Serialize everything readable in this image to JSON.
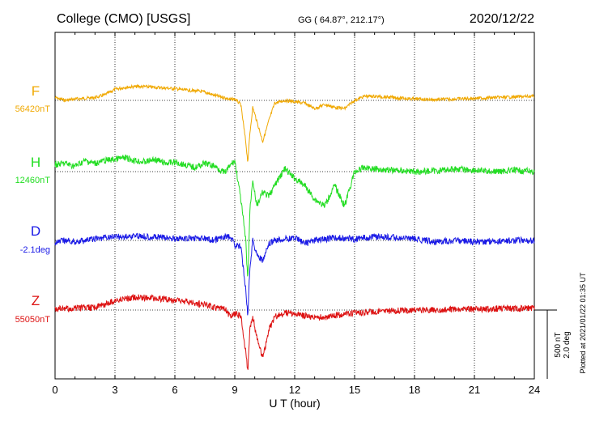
{
  "header": {
    "station": "College (CMO)  [USGS]",
    "coords": "GG ( 64.87°, 212.17°)",
    "date": "2020/12/22"
  },
  "footer": {
    "plotted": "Plotted at 2021/01/22 01:35 UT"
  },
  "chart_data": {
    "type": "line",
    "xlabel": "U T (hour)",
    "xlim": [
      0,
      24
    ],
    "xticks": [
      0,
      3,
      6,
      9,
      12,
      15,
      18,
      21,
      24
    ],
    "grid": true,
    "scale_bar": {
      "label_top": "500 nT",
      "label_bottom": "2.0 deg"
    },
    "series": [
      {
        "name": "F",
        "baseline_label": "56420nT",
        "color": "#f0a800",
        "x": [
          0,
          0.5,
          1,
          1.5,
          2,
          2.5,
          3,
          3.5,
          4,
          4.5,
          5,
          5.5,
          6,
          6.5,
          7,
          7.5,
          8,
          8.5,
          8.8,
          9,
          9.3,
          9.55,
          9.65,
          9.75,
          9.9,
          10.1,
          10.4,
          10.7,
          11,
          11.5,
          12,
          12.5,
          13,
          13.5,
          14,
          14.5,
          15,
          15.5,
          16,
          17,
          18,
          19,
          20,
          21,
          22,
          23,
          24
        ],
        "y": [
          20,
          0,
          10,
          15,
          20,
          40,
          80,
          95,
          100,
          100,
          95,
          90,
          85,
          75,
          70,
          60,
          35,
          20,
          5,
          10,
          -30,
          -300,
          -450,
          -250,
          -50,
          -150,
          -300,
          -150,
          -20,
          0,
          -10,
          -20,
          -60,
          -30,
          -50,
          -60,
          0,
          30,
          30,
          20,
          10,
          5,
          10,
          15,
          20,
          25,
          30
        ]
      },
      {
        "name": "H",
        "baseline_label": "12460nT",
        "color": "#22dd22",
        "x": [
          0,
          0.5,
          1,
          1.5,
          2,
          2.5,
          3,
          3.5,
          4,
          4.5,
          5,
          5.5,
          6,
          6.5,
          7,
          7.5,
          8,
          8.5,
          8.8,
          9,
          9.3,
          9.55,
          9.65,
          9.75,
          9.9,
          10.1,
          10.4,
          10.7,
          11,
          11.5,
          12,
          12.5,
          13,
          13.5,
          14,
          14.5,
          15,
          15.5,
          16,
          17,
          18,
          19,
          20,
          21,
          22,
          23,
          24
        ],
        "y": [
          50,
          60,
          40,
          80,
          60,
          80,
          90,
          100,
          80,
          70,
          90,
          60,
          70,
          50,
          30,
          60,
          40,
          -10,
          50,
          80,
          -200,
          -500,
          -800,
          -300,
          -50,
          -250,
          -150,
          -180,
          -100,
          20,
          -50,
          -100,
          -200,
          -250,
          -100,
          -250,
          0,
          30,
          20,
          10,
          0,
          5,
          20,
          10,
          0,
          10,
          0
        ]
      },
      {
        "name": "D",
        "baseline_label": "-2.1deg",
        "color": "#1a1ae6",
        "x": [
          0,
          0.5,
          1,
          1.5,
          2,
          2.5,
          3,
          3.5,
          4,
          4.5,
          5,
          5.5,
          6,
          6.5,
          7,
          7.5,
          8,
          8.5,
          8.8,
          9,
          9.3,
          9.55,
          9.65,
          9.75,
          9.9,
          10.1,
          10.4,
          10.7,
          11,
          11.5,
          12,
          12.5,
          13,
          13.5,
          14,
          14.5,
          15,
          15.5,
          16,
          17,
          18,
          19,
          20,
          21,
          22,
          23,
          24
        ],
        "y": [
          -20,
          0,
          -10,
          0,
          10,
          20,
          30,
          25,
          35,
          30,
          25,
          20,
          15,
          10,
          20,
          10,
          0,
          30,
          20,
          -30,
          -50,
          -350,
          -550,
          -200,
          0,
          -100,
          -150,
          -30,
          0,
          10,
          20,
          -20,
          0,
          10,
          20,
          15,
          10,
          20,
          30,
          20,
          10,
          -10,
          0,
          -10,
          -5,
          0,
          0
        ]
      },
      {
        "name": "Z",
        "baseline_label": "55050nT",
        "color": "#dd1111",
        "x": [
          0,
          0.5,
          1,
          1.5,
          2,
          2.5,
          3,
          3.5,
          4,
          4.5,
          5,
          5.5,
          6,
          6.5,
          7,
          7.5,
          8,
          8.5,
          8.8,
          9,
          9.3,
          9.55,
          9.65,
          9.75,
          9.9,
          10.1,
          10.4,
          10.7,
          11,
          11.5,
          12,
          12.5,
          13,
          13.5,
          14,
          14.5,
          15,
          15.5,
          16,
          17,
          18,
          19,
          20,
          21,
          22,
          23,
          24
        ],
        "y": [
          5,
          10,
          10,
          15,
          20,
          40,
          70,
          80,
          90,
          90,
          85,
          80,
          70,
          60,
          50,
          40,
          20,
          10,
          -50,
          -30,
          -40,
          -300,
          -450,
          -150,
          -50,
          -200,
          -350,
          -150,
          -50,
          -20,
          -30,
          -40,
          -60,
          -50,
          -40,
          -30,
          -20,
          -20,
          -10,
          -5,
          0,
          0,
          5,
          5,
          10,
          10,
          15
        ]
      }
    ]
  }
}
